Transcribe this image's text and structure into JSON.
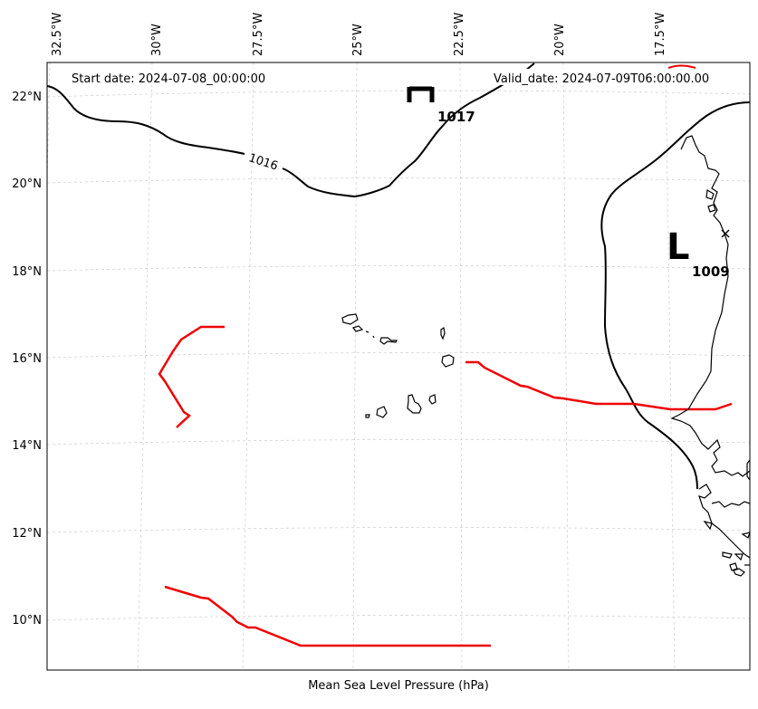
{
  "map": {
    "start_label": "Start date: 2024-07-08_00:00:00",
    "valid_label": "Valid_date: 2024-07-09T06:00:00.00",
    "xlabel": "Mean Sea Level Pressure (hPa)",
    "lon_ticks": [
      "32.5°W",
      "30°W",
      "27.5°W",
      "25°W",
      "22.5°W",
      "20°W",
      "17.5°W"
    ],
    "lat_ticks": [
      "22°N",
      "20°N",
      "18°N",
      "16°N",
      "14°N",
      "12°N",
      "10°N"
    ],
    "isobar_label": "1016",
    "high": {
      "symbol": "H",
      "value": "1017"
    },
    "low": {
      "symbol": "L",
      "value": "1009"
    },
    "colors": {
      "isobar": "#000000",
      "front": "#ee0000",
      "grid": "#cccccc"
    }
  }
}
